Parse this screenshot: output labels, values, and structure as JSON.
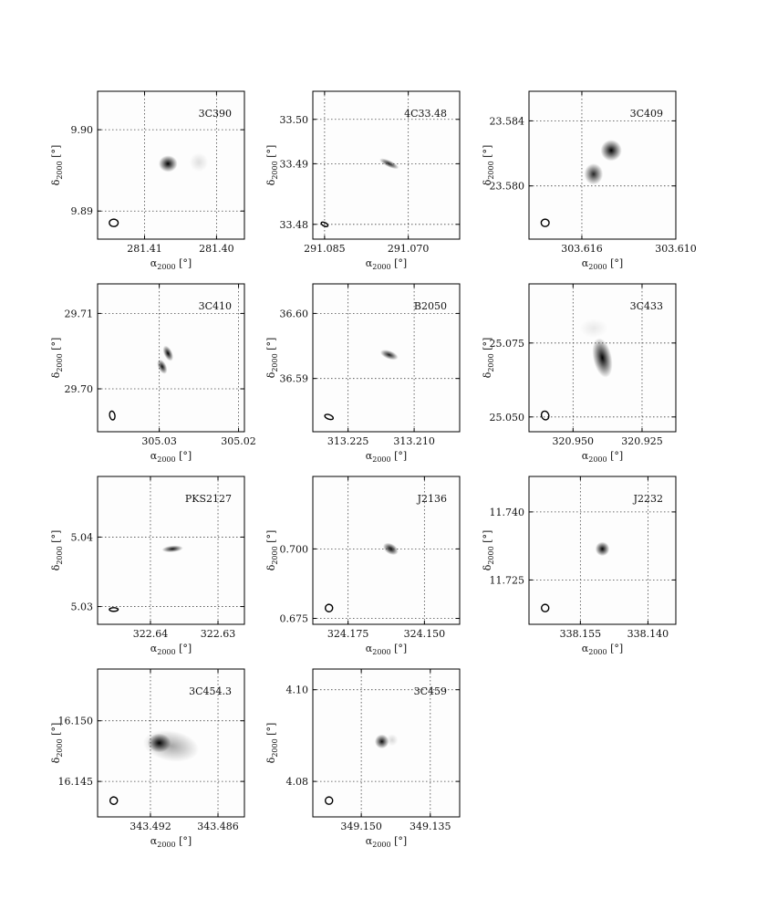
{
  "figure": {
    "colors": {
      "frame": "#000000",
      "grid": "#444444",
      "background": "#fdfdfd",
      "emission": "#000000"
    },
    "x_axis_label": {
      "main": "α",
      "sub": "2000",
      "unit": " [°]"
    },
    "y_axis_label": {
      "main": "δ",
      "sub": "2000",
      "unit": " [°]"
    },
    "panels": [
      {
        "source": "3C390",
        "x_ticks": [
          "281.41",
          "281.40"
        ],
        "y_ticks": [
          "9.90",
          "9.89"
        ],
        "components": [
          {
            "cx": 0.48,
            "cy": 0.49,
            "rx": 0.04,
            "ry": 0.035,
            "angle": 0,
            "peak": 1.0
          },
          {
            "cx": 0.69,
            "cy": 0.48,
            "rx": 0.04,
            "ry": 0.04,
            "angle": 0,
            "peak": 0.12
          }
        ]
      },
      {
        "source": "4C33.48",
        "x_ticks": [
          "291.085",
          "291.070"
        ],
        "y_ticks": [
          "33.50",
          "33.49",
          "33.48"
        ],
        "components": [
          {
            "cx": 0.52,
            "cy": 0.49,
            "rx": 0.045,
            "ry": 0.014,
            "angle": 25,
            "peak": 0.9
          }
        ]
      },
      {
        "source": "3C409",
        "x_ticks": [
          "303.616",
          "303.610"
        ],
        "y_ticks": [
          "23.584",
          "23.580"
        ],
        "components": [
          {
            "cx": 0.56,
            "cy": 0.4,
            "rx": 0.045,
            "ry": 0.045,
            "angle": 0,
            "peak": 1.0
          },
          {
            "cx": 0.44,
            "cy": 0.56,
            "rx": 0.04,
            "ry": 0.045,
            "angle": 0,
            "peak": 0.85
          }
        ]
      },
      {
        "source": "3C410",
        "x_ticks": [
          "305.03",
          "305.02"
        ],
        "y_ticks": [
          "29.71",
          "29.70"
        ],
        "components": [
          {
            "cx": 0.48,
            "cy": 0.47,
            "rx": 0.018,
            "ry": 0.035,
            "angle": -25,
            "peak": 1.0
          },
          {
            "cx": 0.44,
            "cy": 0.56,
            "rx": 0.018,
            "ry": 0.033,
            "angle": -25,
            "peak": 0.95
          }
        ]
      },
      {
        "source": "B2050",
        "x_ticks": [
          "313.225",
          "313.210"
        ],
        "y_ticks": [
          "36.60",
          "36.59"
        ],
        "components": [
          {
            "cx": 0.52,
            "cy": 0.48,
            "rx": 0.04,
            "ry": 0.018,
            "angle": 20,
            "peak": 0.9
          }
        ]
      },
      {
        "source": "3C433",
        "x_ticks": [
          "320.950",
          "320.925"
        ],
        "y_ticks": [
          "25.075",
          "25.050"
        ],
        "components": [
          {
            "cx": 0.5,
            "cy": 0.5,
            "rx": 0.04,
            "ry": 0.085,
            "angle": -12,
            "peak": 1.0
          },
          {
            "cx": 0.44,
            "cy": 0.3,
            "rx": 0.06,
            "ry": 0.04,
            "angle": 0,
            "peak": 0.08
          }
        ]
      },
      {
        "source": "PKS2127",
        "x_ticks": [
          "322.64",
          "322.63"
        ],
        "y_ticks": [
          "5.04",
          "5.03"
        ],
        "components": [
          {
            "cx": 0.51,
            "cy": 0.49,
            "rx": 0.045,
            "ry": 0.014,
            "angle": -5,
            "peak": 0.95
          }
        ]
      },
      {
        "source": "J2136",
        "x_ticks": [
          "324.175",
          "324.150"
        ],
        "y_ticks": [
          "0.700",
          "0.675"
        ],
        "components": [
          {
            "cx": 0.53,
            "cy": 0.49,
            "rx": 0.035,
            "ry": 0.022,
            "angle": 30,
            "peak": 1.0
          }
        ]
      },
      {
        "source": "J2232",
        "x_ticks": [
          "338.155",
          "338.140"
        ],
        "y_ticks": [
          "11.740",
          "11.725"
        ],
        "components": [
          {
            "cx": 0.5,
            "cy": 0.49,
            "rx": 0.03,
            "ry": 0.03,
            "angle": 0,
            "peak": 1.0
          }
        ]
      },
      {
        "source": "3C454.3",
        "x_ticks": [
          "343.492",
          "343.486"
        ],
        "y_ticks": [
          "16.150",
          "16.145"
        ],
        "components": [
          {
            "cx": 0.42,
            "cy": 0.5,
            "rx": 0.05,
            "ry": 0.04,
            "angle": 0,
            "peak": 1.0
          },
          {
            "cx": 0.5,
            "cy": 0.52,
            "rx": 0.12,
            "ry": 0.065,
            "angle": 10,
            "peak": 0.35
          }
        ]
      },
      {
        "source": "3C459",
        "x_ticks": [
          "349.150",
          "349.135"
        ],
        "y_ticks": [
          "4.10",
          "4.08"
        ],
        "components": [
          {
            "cx": 0.47,
            "cy": 0.49,
            "rx": 0.03,
            "ry": 0.03,
            "angle": 0,
            "peak": 0.95
          },
          {
            "cx": 0.54,
            "cy": 0.48,
            "rx": 0.025,
            "ry": 0.025,
            "angle": 0,
            "peak": 0.15
          }
        ]
      }
    ]
  }
}
